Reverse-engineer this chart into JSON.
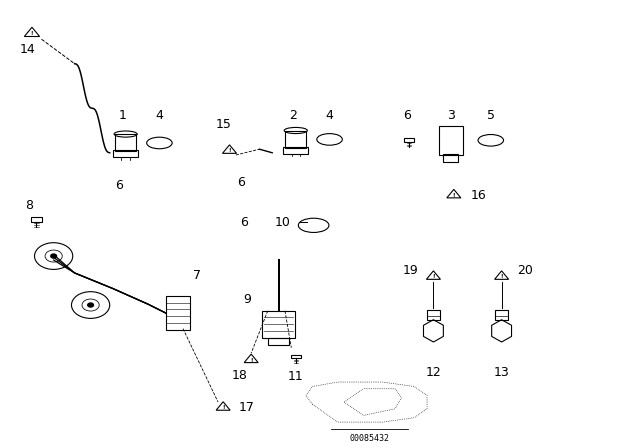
{
  "bg_color": "#ffffff",
  "line_color": "#000000",
  "text_color": "#000000",
  "part_number": "00085432",
  "font_size": 9
}
